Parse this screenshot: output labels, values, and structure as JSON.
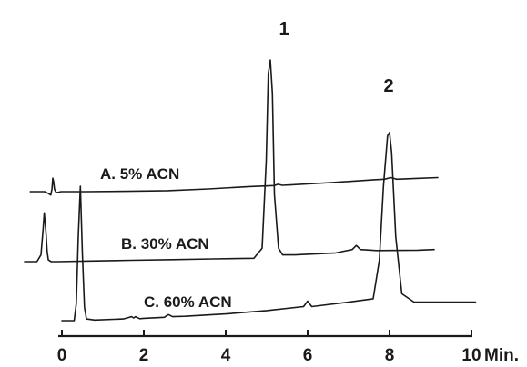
{
  "chart_data": {
    "type": "line",
    "title": "",
    "xlabel": "",
    "ylabel": "",
    "x_unit_label": "Min.",
    "xlim": [
      0,
      10
    ],
    "x_ticks": [
      0,
      2,
      4,
      6,
      8,
      10
    ],
    "grid": false,
    "legend": "none",
    "peak_labels": [
      {
        "label": "1",
        "x": 5.4
      },
      {
        "label": "2",
        "x": 7.95
      }
    ],
    "series": [
      {
        "name": "A. 5% ACN",
        "x": [
          -1.35,
          -1.0,
          -0.9,
          -0.85,
          -0.82,
          -0.8,
          -0.78,
          -0.76,
          -0.73,
          -0.7,
          -0.6,
          0,
          1,
          2,
          3,
          4,
          4.6,
          4.7,
          4.8,
          5,
          6,
          7,
          7.3,
          7.45,
          7.6,
          8,
          8.6
        ],
        "y": [
          0.0,
          0.0,
          -0.06,
          -0.1,
          0.08,
          0.4,
          0.3,
          0.08,
          0.0,
          -0.03,
          0.0,
          0.0,
          0.01,
          0.03,
          0.08,
          0.15,
          0.18,
          0.22,
          0.19,
          0.2,
          0.27,
          0.35,
          0.37,
          0.42,
          0.37,
          0.39,
          0.42
        ]
      },
      {
        "name": "B. 30% ACN",
        "x": [
          -0.6,
          -0.3,
          -0.2,
          -0.15,
          -0.12,
          -0.08,
          -0.05,
          -0.02,
          0.05,
          0.2,
          1,
          2,
          3,
          4,
          5,
          5.2,
          5.3,
          5.35,
          5.4,
          5.45,
          5.5,
          5.6,
          5.7,
          6,
          7,
          7.4,
          7.5,
          7.6,
          8,
          9,
          9.4
        ],
        "y": [
          0.0,
          0.0,
          0.2,
          0.95,
          1.45,
          0.9,
          0.3,
          0.05,
          0.0,
          0.0,
          0.02,
          0.04,
          0.06,
          0.08,
          0.1,
          0.4,
          3.0,
          5.6,
          6.0,
          5.0,
          2.0,
          0.4,
          0.2,
          0.2,
          0.26,
          0.36,
          0.48,
          0.36,
          0.33,
          0.34,
          0.36
        ]
      },
      {
        "name": "C. 60% ACN",
        "x": [
          0,
          0.3,
          0.35,
          0.4,
          0.45,
          0.5,
          0.55,
          0.6,
          0.8,
          1.5,
          1.7,
          1.75,
          1.8,
          1.9,
          2.0,
          2.5,
          2.6,
          2.7,
          3,
          4,
          5,
          5.9,
          6.0,
          6.1,
          7,
          7.6,
          7.75,
          7.85,
          7.95,
          8.0,
          8.05,
          8.15,
          8.3,
          8.6,
          9,
          10.1
        ],
        "y": [
          0.0,
          0.0,
          0.5,
          2.5,
          4.0,
          2.0,
          0.4,
          0.05,
          0.02,
          0.05,
          0.12,
          0.08,
          0.12,
          0.06,
          0.07,
          0.1,
          0.18,
          0.12,
          0.13,
          0.2,
          0.3,
          0.42,
          0.58,
          0.42,
          0.55,
          0.65,
          1.8,
          4.0,
          5.5,
          5.6,
          5.0,
          2.5,
          0.8,
          0.55,
          0.55,
          0.55
        ]
      }
    ]
  }
}
